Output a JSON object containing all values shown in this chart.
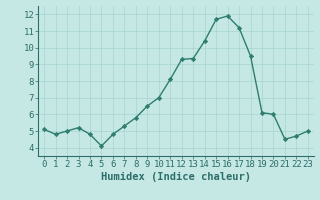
{
  "x": [
    0,
    1,
    2,
    3,
    4,
    5,
    6,
    7,
    8,
    9,
    10,
    11,
    12,
    13,
    14,
    15,
    16,
    17,
    18,
    19,
    20,
    21,
    22,
    23
  ],
  "y": [
    5.1,
    4.8,
    5.0,
    5.2,
    4.8,
    4.1,
    4.8,
    5.3,
    5.8,
    6.5,
    7.0,
    8.1,
    9.3,
    9.35,
    10.4,
    11.7,
    11.9,
    11.2,
    9.5,
    6.1,
    6.0,
    4.5,
    4.7,
    5.0
  ],
  "line_color": "#2e7d6e",
  "marker_color": "#2e7d6e",
  "bg_color": "#c5e8e5",
  "grid_color": "#a8d4d0",
  "xlabel": "Humidex (Indice chaleur)",
  "xlim": [
    -0.5,
    23.5
  ],
  "ylim": [
    3.5,
    12.5
  ],
  "yticks": [
    4,
    5,
    6,
    7,
    8,
    9,
    10,
    11,
    12
  ],
  "xticks": [
    0,
    1,
    2,
    3,
    4,
    5,
    6,
    7,
    8,
    9,
    10,
    11,
    12,
    13,
    14,
    15,
    16,
    17,
    18,
    19,
    20,
    21,
    22,
    23
  ],
  "tick_color": "#2e6e68",
  "label_color": "#2e6e68",
  "font_size": 6.5,
  "label_font_size": 7.5,
  "linewidth": 1.0,
  "markersize": 2.2
}
